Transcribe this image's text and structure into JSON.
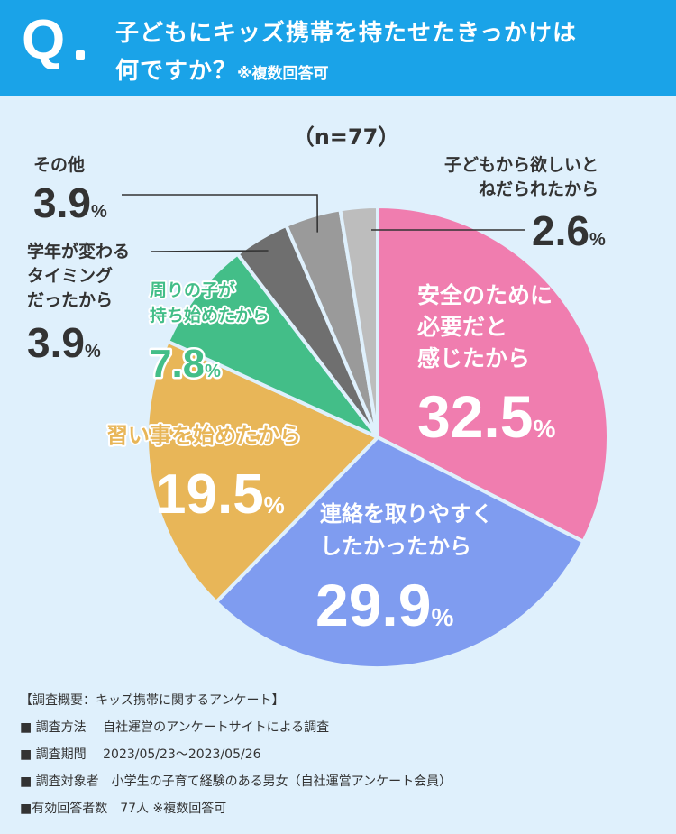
{
  "header": {
    "q_mark": "Q",
    "title_line1": "子どもにキッズ携帯を持たせたきっかけは",
    "title_line2": "何ですか？",
    "title_note": "※複数回答可"
  },
  "chart_data": {
    "type": "pie",
    "title": "子どもにキッズ携帯を持たせたきっかけは何ですか？",
    "n_label": "（n=77）",
    "unit": "%",
    "slices": [
      {
        "label_lines": [
          "安全のために",
          "必要だと",
          "感じたから"
        ],
        "value": 32.5,
        "value_text": "32.5",
        "color": "#f07daf"
      },
      {
        "label_lines": [
          "連絡を取りやすく",
          "したかったから"
        ],
        "value": 29.9,
        "value_text": "29.9",
        "color": "#7f9cf0"
      },
      {
        "label_lines": [
          "習い事を始めたから"
        ],
        "value": 19.5,
        "value_text": "19.5",
        "color": "#e8b658"
      },
      {
        "label_lines": [
          "周りの子が",
          "持ち始めたから"
        ],
        "value": 7.8,
        "value_text": "7.8",
        "color": "#43be88"
      },
      {
        "label_lines": [
          "学年が変わる",
          "タイミング",
          "だったから"
        ],
        "value": 3.9,
        "value_text": "3.9",
        "color": "#6f6f6f"
      },
      {
        "label_lines": [
          "その他"
        ],
        "value": 3.9,
        "value_text": "3.9",
        "color": "#9a9a9a"
      },
      {
        "label_lines": [
          "子どもから欲しいと",
          "ねだられたから"
        ],
        "value": 2.6,
        "value_text": "2.6",
        "color": "#bdbdbd"
      }
    ]
  },
  "survey": {
    "heading": "【調査概要：キッズ携帯に関するアンケート】",
    "items": [
      "■ 調査方法　 自社運営のアンケートサイトによる調査",
      "■ 調査期間　 2023/05/23～2023/05/26",
      "■ 調査対象者　小学生の子育て経験のある男女（自社運営アンケート会員）",
      "■有効回答者数　77人 ※複数回答可"
    ]
  }
}
